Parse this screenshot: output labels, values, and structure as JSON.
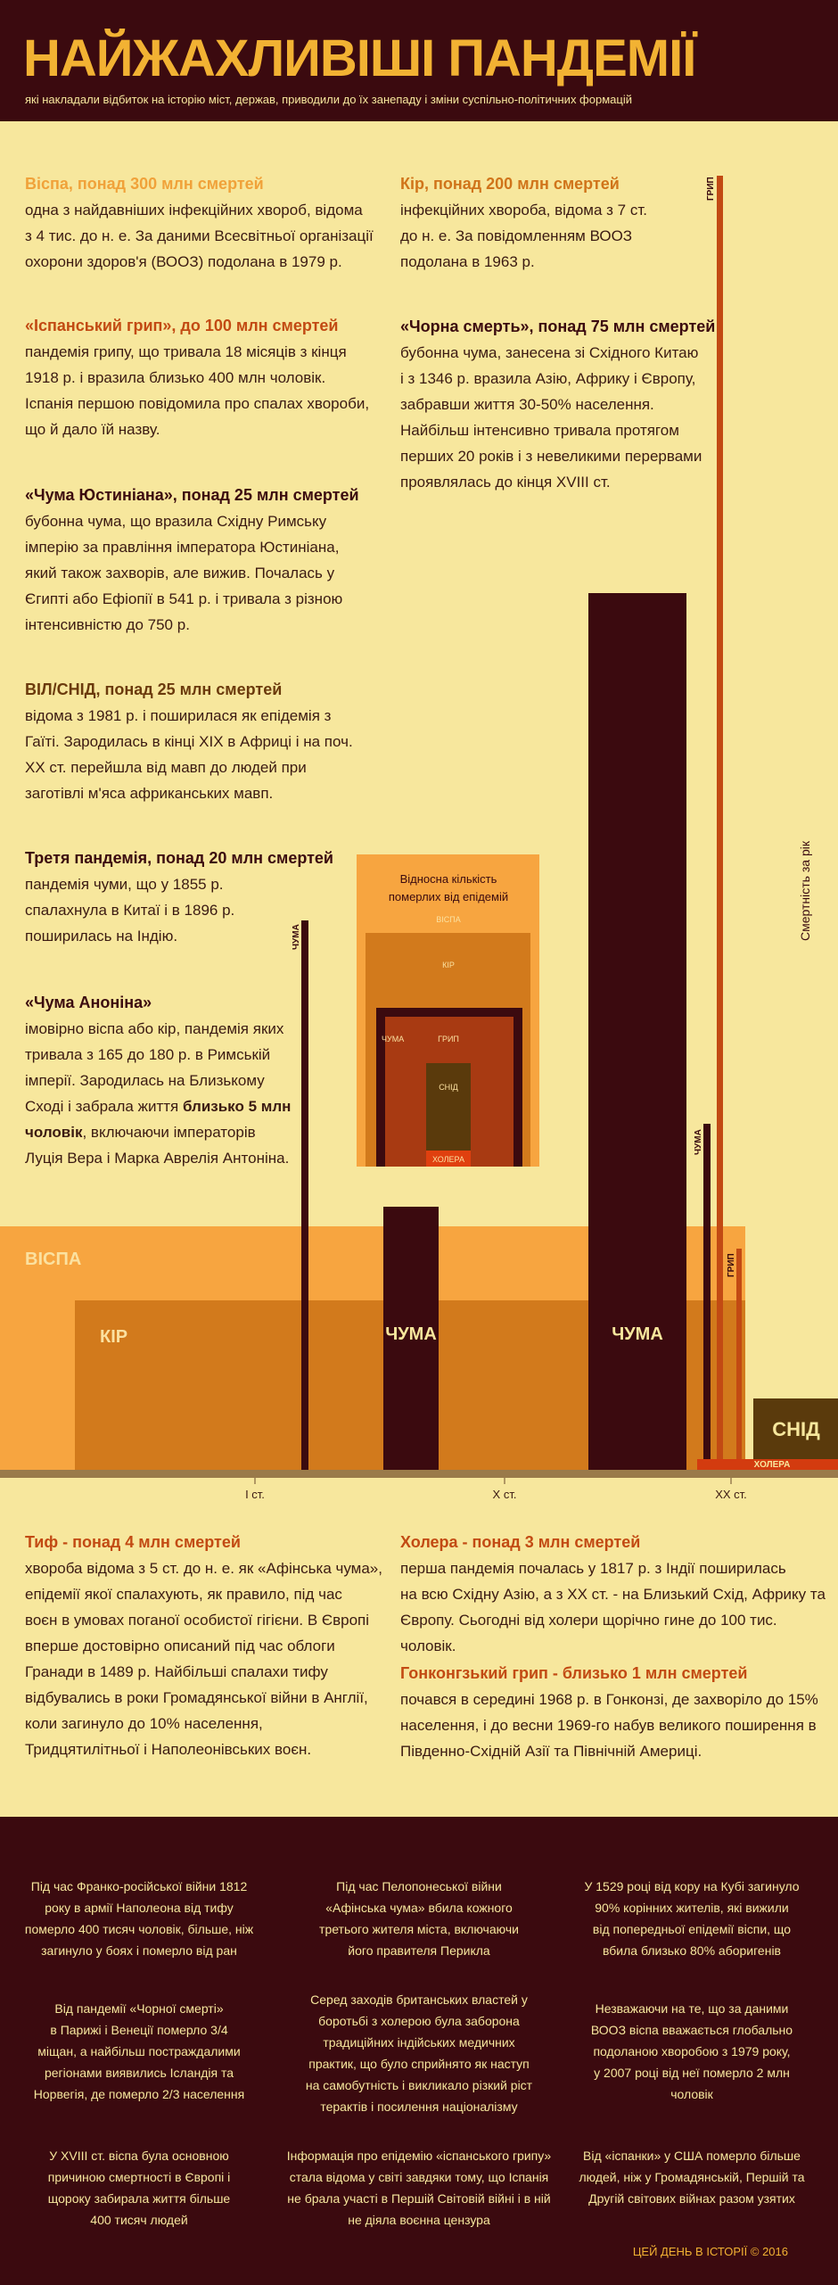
{
  "header": {
    "title": "НАЙЖАХЛИВІШІ ПАНДЕМІЇ",
    "subtitle": "які накладали відбиток на історію міст, держав, приводили до їх занепаду і зміни суспільно-політичних формацій"
  },
  "descriptions": {
    "left": [
      {
        "title": "Віспа, понад 300 млн смертей",
        "color": "#f0a23a",
        "lines": [
          "одна з найдавніших інфекційних хвороб, відома",
          "з 4 тис. до н. е. За даними Всесвітньої організації",
          "охорони здоров'я (ВООЗ) подолана в 1979 р."
        ]
      },
      {
        "title": "«Іспанський грип», до 100 млн смертей",
        "color": "#c24a13",
        "lines": [
          "пандемія грипу, що тривала 18 місяців з кінця",
          "1918 р. і вразила близько 400 млн чоловік.",
          "Іспанія першою повідомила про спалах хвороби,",
          "що й дало їй назву."
        ]
      },
      {
        "title": "«Чума Юстиніана», понад 25 млн смертей",
        "color": "#3b0a0f",
        "lines": [
          "бубонна чума, що вразила Східну Римську",
          "імперію за правління імператора Юстиніана,",
          "який також захворів, але вижив. Почалась у",
          "Єгипті або Ефіопії в 541 р. і тривала з різною",
          "інтенсивністю до 750 р."
        ]
      },
      {
        "title": "ВІЛ/СНІД, понад 25 млн смертей",
        "color": "#6b3a0c",
        "lines": [
          "відома з 1981 р. і поширилася як епідемія з",
          "Гаїті. Зародилась в кінці XIX в Африці і на поч.",
          "XX ст. перейшла від мавп до людей при",
          "заготівлі м'яса африканських мавп."
        ]
      },
      {
        "title": "Третя пандемія, понад 20 млн смертей",
        "color": "#3b0a0f",
        "lines": [
          "пандемія чуми, що у 1855 р.",
          "спалахнула в Китаї і в 1896 р.",
          "поширилась на Індію."
        ]
      }
    ],
    "right": [
      {
        "title": "Кір, понад  200 млн смертей",
        "color": "#d0741a",
        "lines": [
          "інфекційних хвороба, відома з 7 ст.",
          "до н. е. За повідомленням ВООЗ",
          "подолана в 1963 р."
        ]
      },
      {
        "title": "«Чорна смерть», понад 75 млн смертей",
        "color": "#3b0a0f",
        "lines": [
          "бубонна чума, занесена зі Східного Китаю",
          "і з 1346 р. вразила Азію, Африку і Європу,",
          "забравши життя 30-50% населення.",
          "Найбільш інтенсивно тривала протягом",
          "перших 20 років і з невеликими перервами",
          "проявлялась до кінця XVIII ст."
        ]
      }
    ],
    "antonine": {
      "title": "«Чума Анонiна»",
      "l1": "імовірно віспа або кір, пандемія яких",
      "l2": "тривала з 165 до 180 р. в Римській",
      "l3": "імперії. Зародилась на Близькому",
      "l4a": "Сході і забрала життя ",
      "l4b": "близько 5 млн",
      "l5a": "чоловік",
      "l5b": ", включаючи імператорів",
      "l6": "Луція Вера і Марка Аврелія Антоніна."
    },
    "bottom": [
      {
        "title": "Тиф - понад 4 млн смертей",
        "color": "#c24a13",
        "lines": [
          "хвороба відома з 5 ст. до н. е. як «Афінська чума»,",
          "епідемії якої спалахують, як правило, під час",
          "воєн в умовах поганої особистої гігієни. В Європі",
          "вперше достовірно описаний під час облоги",
          "Гранади в 1489 р. Найбільші спалахи тифу",
          "відбувались в роки Громадянської війни в Англії,",
          "коли загинуло до 10% населення,",
          "Тридцятилітньої і Наполеонівських воєн."
        ]
      },
      {
        "title": "Холера - понад 3 млн смертей",
        "color": "#c24a13",
        "lines": [
          "перша пандемія почалась у 1817 р. з Індії поширилась",
          "на всю Східну Азію, а з XX ст. - на Близький Схід, Африку та",
          "Європу. Сьогодні від холери щорічно гине до 100 тис. чоловік."
        ]
      },
      {
        "title": "Гонконгзький грип - близько 1 млн смертей",
        "color": "#c24a13",
        "lines": [
          "почався в середині 1968 р. в Гонконзі, де захворіло до 15%",
          "населення, і до весни 1969-го набув великого поширення в",
          "Південно-Східній Азії та Північній Америці."
        ]
      }
    ]
  },
  "chart_data": {
    "type": "area",
    "ylabel": "Смертність за рік",
    "x_ticks": [
      "I ст.",
      "X ст.",
      "XX ст."
    ],
    "bands": [
      {
        "label": "ВІСПА",
        "color": "#f7a540"
      },
      {
        "label": "КІР",
        "color": "#d27a1c"
      },
      {
        "label": "ЧУМА",
        "color": "#3b0a0f"
      },
      {
        "label": "ЧУМА",
        "color": "#3b0a0f"
      },
      {
        "label": "ЧУМА",
        "color": "#3b0a0f"
      },
      {
        "label": "ЧУМА",
        "color": "#3b0a0f"
      },
      {
        "label": "СНІД",
        "color": "#5a3a0c"
      },
      {
        "label": "ГРИП",
        "color": "#c24a13"
      },
      {
        "label": "ГРИП",
        "color": "#c24a13"
      },
      {
        "label": "ХОЛЕРА",
        "color": "#d33b0f"
      }
    ],
    "relative_panel": {
      "title_lines": [
        "Відносна кількість",
        "померлих від епідемій"
      ],
      "labels": [
        "ВІСПА",
        "КІР",
        "ЧУМА",
        "ГРИП",
        "СНІД",
        "ХОЛЕРА"
      ]
    }
  },
  "facts": [
    [
      "Під час  Франко-російської війни 1812",
      "року в армії Наполеона від тифу",
      "померло 400 тисяч чоловік, більше, ніж",
      "загинуло у боях і померло від ран"
    ],
    [
      "Під час Пелопонеської війни",
      "«Афінська чума» вбила кожного",
      "третього жителя міста, включаючи",
      "його правителя Перикла"
    ],
    [
      "У 1529 році від кору на Кубі загинуло",
      "90% корінних жителів, які вижили",
      "від попередньої епідемії віспи, що",
      "вбила близько 80% аборигенів"
    ],
    [
      "Від пандемії «Чорної смерті»",
      "в Парижі і Венеції померло 3/4",
      "міщан, а найбільш постраждалими",
      "регіонами виявились Ісландія та",
      "Норвегія, де померло 2/3 населення"
    ],
    [
      "Серед заходів британських властей у",
      "боротьбі з холерою була заборона",
      "традиційних індійських медичних",
      "практик, що було сприйнято як наступ",
      "на самобутність і викликало різкий ріст",
      "терактів і посилення націоналізму"
    ],
    [
      "Незважаючи на те, що за даними",
      "ВООЗ віспа вважається глобально",
      "подоланою хворобою з 1979 року,",
      "у 2007 році від неї померло 2 млн",
      "чоловік"
    ],
    [
      "У XVIII ст. віспа була основною",
      "причиною смертності в Європі і",
      "щороку забирала життя більше",
      "400 тисяч людей"
    ],
    [
      "Інформація про епідемію «іспанського грипу»",
      "стала відома у світі завдяки тому, що Іспанія",
      "не брала участі в Першій Світовій війні і в ній",
      "не діяла воєнна цензура"
    ],
    [
      "Від «іспанки» у США померло більше",
      "людей, ніж у Громадянській, Першій та",
      "Другій світових війнах разом узятих"
    ]
  ],
  "copyright": "ЦЕЙ ДЕНЬ В ІСТОРІЇ © 2016"
}
